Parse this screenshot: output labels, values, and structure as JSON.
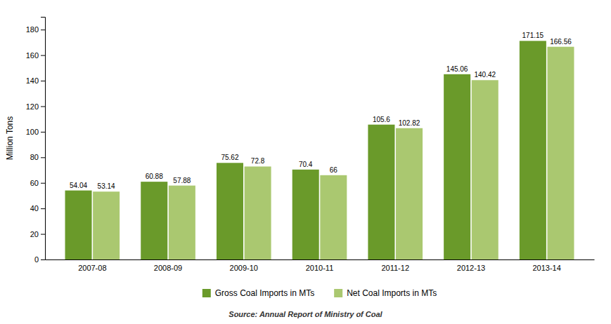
{
  "chart_data": {
    "type": "bar",
    "categories": [
      "2007-08",
      "2008-09",
      "2009-10",
      "2010-11",
      "2011-12",
      "2012-13",
      "2013-14"
    ],
    "series": [
      {
        "name": "Gross Coal Imports in MTs",
        "color": "#6a9a2a",
        "values": [
          54.04,
          60.88,
          75.62,
          70.4,
          105.6,
          145.06,
          171.15
        ]
      },
      {
        "name": "Net Coal Imports in MTs",
        "color": "#aac870",
        "values": [
          53.14,
          57.88,
          72.8,
          66,
          102.82,
          140.42,
          166.56
        ]
      }
    ],
    "ylabel": "Million Tons",
    "ylim": [
      0,
      190
    ],
    "yticks": [
      0,
      20,
      40,
      60,
      80,
      100,
      120,
      140,
      160,
      180
    ],
    "grid": false,
    "legend": "bottom",
    "data_labels": true,
    "annotations": [
      "Source: Annual Report of Ministry of Coal"
    ]
  }
}
